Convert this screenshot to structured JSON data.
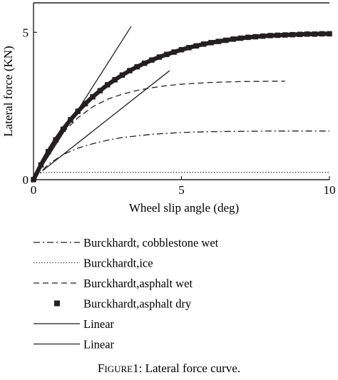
{
  "chart_data": {
    "type": "line",
    "xlabel": "Wheel slip angle (deg)",
    "ylabel": "Lateral force (KN)",
    "xlim": [
      0,
      10
    ],
    "ylim": [
      0,
      6
    ],
    "x_ticks": [
      0,
      5,
      10
    ],
    "y_ticks": [
      0,
      5
    ],
    "grid": false,
    "legend_position": "below the plot",
    "series": [
      {
        "name": "Burckhardt, cobblestone wet",
        "style": "dash-dot",
        "x": [
          0,
          0.5,
          1,
          1.5,
          2,
          2.5,
          3,
          4,
          5,
          6,
          7,
          8,
          9,
          10
        ],
        "y": [
          0,
          0.52,
          0.85,
          1.07,
          1.22,
          1.34,
          1.43,
          1.54,
          1.6,
          1.63,
          1.64,
          1.65,
          1.65,
          1.65
        ]
      },
      {
        "name": "Burckhardt,ice",
        "style": "dotted",
        "x": [
          0,
          0.05,
          0.15,
          0.3,
          1,
          2,
          4,
          6,
          8,
          10
        ],
        "y": [
          0,
          0.15,
          0.22,
          0.24,
          0.25,
          0.25,
          0.25,
          0.25,
          0.25,
          0.25
        ]
      },
      {
        "name": "Burckhardt,asphalt wet",
        "style": "dashed",
        "x": [
          0,
          0.5,
          1,
          1.5,
          2,
          2.5,
          3,
          3.5,
          4,
          4.5,
          5,
          6,
          7,
          8,
          8.5
        ],
        "y": [
          0,
          0.9,
          1.6,
          2.1,
          2.47,
          2.73,
          2.9,
          3.03,
          3.12,
          3.19,
          3.24,
          3.3,
          3.33,
          3.34,
          3.34
        ]
      },
      {
        "name": "Burckhardt,asphalt dry",
        "style": "square-markers",
        "x": [
          0,
          0.25,
          0.5,
          0.75,
          1,
          1.25,
          1.5,
          1.75,
          2,
          2.25,
          2.5,
          2.75,
          3,
          3.25,
          3.5,
          3.75,
          4,
          4.25,
          4.5,
          4.75,
          5,
          5.25,
          5.5,
          5.75,
          6,
          6.25,
          6.5,
          6.75,
          7,
          7.25,
          7.5,
          7.75,
          8,
          8.25,
          8.5,
          8.75,
          9,
          9.25,
          9.5,
          9.75,
          10
        ],
        "y": [
          0,
          0.5,
          0.95,
          1.35,
          1.71,
          2.03,
          2.32,
          2.58,
          2.81,
          3.02,
          3.22,
          3.39,
          3.55,
          3.7,
          3.83,
          3.95,
          4.06,
          4.16,
          4.25,
          4.33,
          4.41,
          4.48,
          4.54,
          4.6,
          4.65,
          4.69,
          4.73,
          4.77,
          4.8,
          4.83,
          4.85,
          4.87,
          4.89,
          4.9,
          4.91,
          4.92,
          4.93,
          4.94,
          4.94,
          4.95,
          4.95
        ]
      },
      {
        "name": "Linear",
        "style": "solid",
        "x": [
          0,
          3.3
        ],
        "y": [
          0,
          5.2
        ]
      },
      {
        "name": "Linear",
        "style": "solid",
        "x": [
          0.3,
          4.6
        ],
        "y": [
          0.3,
          3.7
        ]
      }
    ]
  },
  "caption": {
    "prefix_first": "F",
    "prefix_rest": "IGURE",
    "number": "1:",
    "text": "Lateral force curve."
  }
}
